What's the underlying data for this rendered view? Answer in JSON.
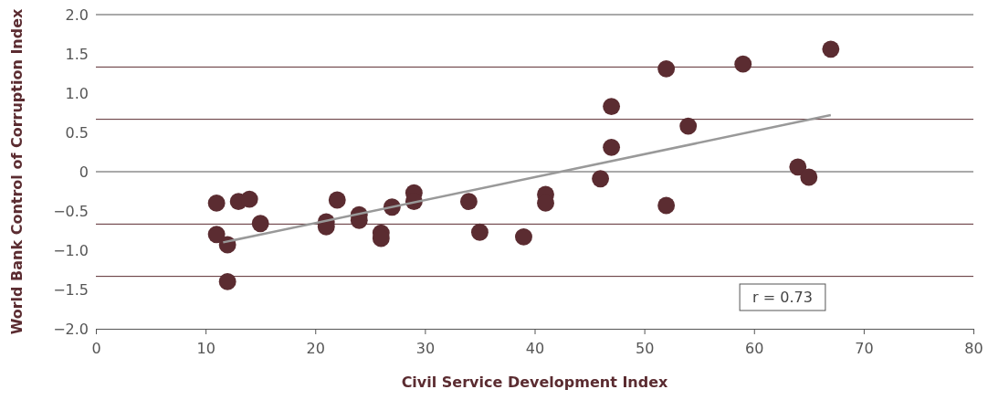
{
  "chart_data": {
    "type": "scatter",
    "xlabel": "Civil Service Development Index",
    "ylabel": "World Bank Control of Corruption Index",
    "xlim": [
      0,
      80
    ],
    "xticks": [
      0,
      10,
      20,
      30,
      40,
      50,
      60,
      70,
      80
    ],
    "ylim": [
      -2,
      2
    ],
    "yticks": [
      {
        "value": -2,
        "label": "−2.0"
      },
      {
        "value": -1.5,
        "label": "−1.5"
      },
      {
        "value": -1,
        "label": "−1.0"
      },
      {
        "value": -0.5,
        "label": "−0.5"
      },
      0,
      0.5,
      {
        "value": 1,
        "label": "1.0"
      },
      1.5,
      {
        "value": 2,
        "label": "2.0"
      }
    ],
    "marker": "circle",
    "series": [
      {
        "color": "#5b2c31",
        "x": [
          11,
          11,
          12,
          12,
          13,
          14,
          15,
          21,
          21,
          22,
          24,
          24,
          26,
          26,
          27,
          29,
          29,
          34,
          35,
          39,
          41,
          41,
          46,
          47,
          47,
          52,
          52,
          54,
          59,
          64,
          65,
          67
        ],
        "values": [
          -0.4,
          -0.8,
          -0.93,
          -1.4,
          -0.38,
          -0.35,
          -0.66,
          -0.64,
          -0.7,
          -0.36,
          -0.55,
          -0.62,
          -0.78,
          -0.85,
          -0.45,
          -0.27,
          -0.38,
          -0.38,
          -0.77,
          -0.83,
          -0.29,
          -0.4,
          -0.09,
          0.83,
          0.31,
          1.31,
          -0.43,
          0.58,
          1.37,
          0.06,
          -0.07,
          1.56
        ]
      },
      {
        "type": "line",
        "marker": "none",
        "color": "#999999",
        "x": [
          11.6,
          67
        ],
        "values": [
          -0.9,
          0.72
        ]
      }
    ],
    "ref_lines": [
      {
        "axis": "y",
        "value": 1.333,
        "color": "#5b2c31"
      },
      {
        "axis": "y",
        "value": 0.667,
        "color": "#5b2c31"
      },
      {
        "axis": "y",
        "value": 0,
        "color": "#555555"
      },
      {
        "axis": "y",
        "value": -0.667,
        "color": "#5b2c31"
      },
      {
        "axis": "y",
        "value": -1.333,
        "color": "#5b2c31"
      }
    ],
    "annotations": [
      "r = 0.73"
    ]
  }
}
